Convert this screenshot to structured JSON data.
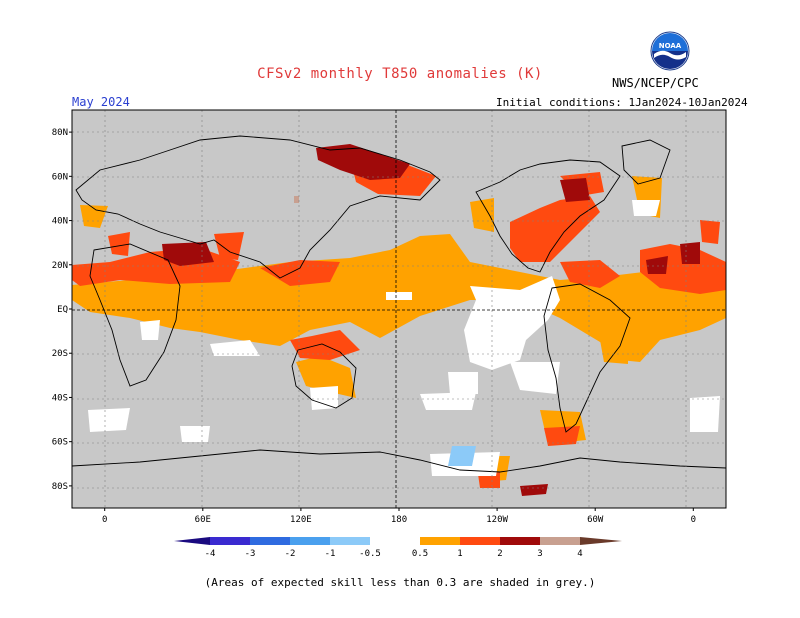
{
  "header": {
    "title": "CFSv2 monthly T850 anomalies (K)",
    "agency": "NWS/NCEP/CPC",
    "month": "May 2024",
    "initial_conditions": "Initial conditions: 1Jan2024-10Jan2024",
    "logo_label": "NOAA"
  },
  "map": {
    "background_color": "#c8c8c8",
    "lat_labels": [
      "80N",
      "60N",
      "40N",
      "20N",
      "EQ",
      "20S",
      "40S",
      "60S",
      "80S"
    ],
    "lon_labels": [
      "0",
      "60E",
      "120E",
      "180",
      "120W",
      "60W",
      "0"
    ],
    "lat_values": [
      80,
      60,
      40,
      20,
      0,
      -20,
      -40,
      -60,
      -80
    ],
    "lon_values": [
      0,
      60,
      120,
      180,
      240,
      300,
      360
    ],
    "lon_range": [
      -20,
      380
    ],
    "lat_range": [
      -90,
      90
    ]
  },
  "legend": {
    "ticks": [
      "-4",
      "-3",
      "-2",
      "-1",
      "-0.5",
      "0.5",
      "1",
      "2",
      "3",
      "4"
    ],
    "colors": {
      "lt_-4": "#1a0a80",
      "-4_-3": "#3a2ad0",
      "-3_-2": "#2f6be0",
      "-2_-1": "#4aa0ee",
      "-1_-0.5": "#8ccaf8",
      "-0.5_0.5": "#ffffff",
      "0.5_1": "#ffa200",
      "1_2": "#ff4a10",
      "2_3": "#a00a0a",
      "3_4": "#c8a090",
      "gt_4": "#6a3a2a"
    }
  },
  "footer": {
    "skill_note": "(Areas of expected skill less than 0.3 are shaded in grey.)"
  }
}
